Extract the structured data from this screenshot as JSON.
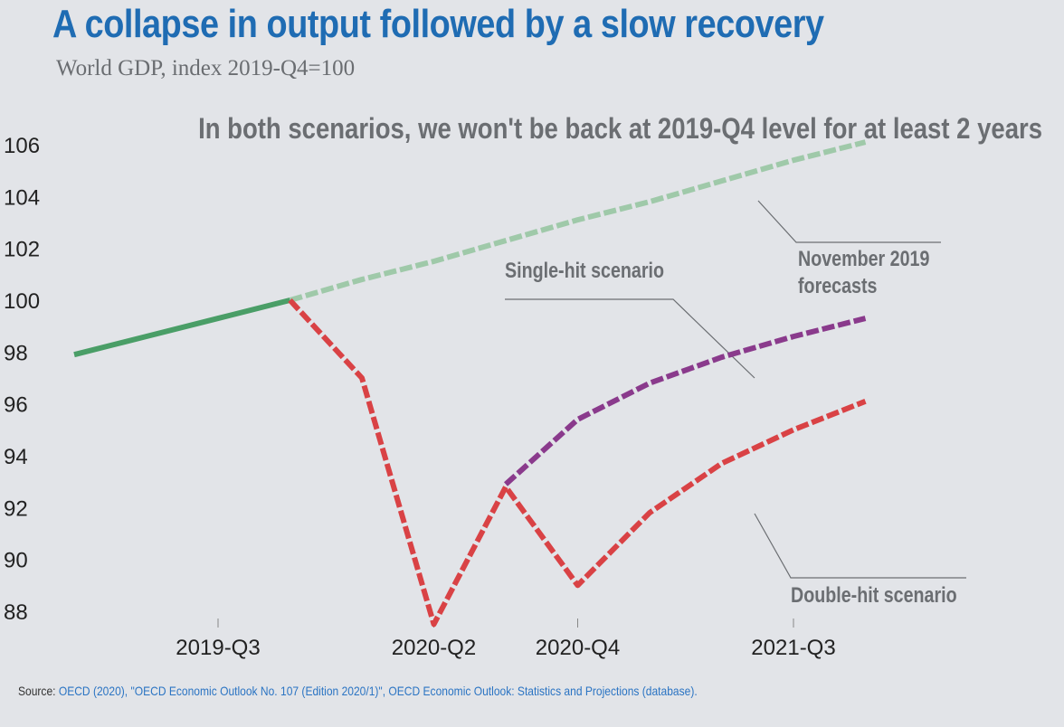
{
  "header": {
    "title": "A collapse in output followed by a slow recovery",
    "subtitle": "World GDP, index 2019-Q4=100"
  },
  "footer": {
    "source_label": "Source:",
    "source_text": "OECD (2020), \"OECD Economic Outlook No. 107 (Edition 2020/1)\", OECD Economic Outlook: Statistics and Projections (database)."
  },
  "colors": {
    "background": "#e2e4e8",
    "title": "#1f6cb3",
    "historical": "#4a9e67",
    "forecast": "#9fc9a9",
    "double_hit": "#d94245",
    "single_hit": "#8a3a8c",
    "annotation": "#6b6e72",
    "link": "#2b74c3"
  },
  "chart_data": {
    "type": "line",
    "title": "",
    "headline": "In both scenarios, we won't be back at 2019-Q4 level for at least 2 years",
    "xlabel": "",
    "ylabel": "",
    "x": [
      "2019-Q1",
      "2019-Q2",
      "2019-Q3",
      "2019-Q4",
      "2020-Q1",
      "2020-Q2",
      "2020-Q3",
      "2020-Q4",
      "2021-Q1",
      "2021-Q2",
      "2021-Q3",
      "2021-Q4"
    ],
    "xticks": [
      "2019-Q3",
      "2020-Q2",
      "2020-Q4",
      "2021-Q3"
    ],
    "ylim": [
      87.5,
      106.3
    ],
    "yticks": [
      88,
      90,
      92,
      94,
      96,
      98,
      100,
      102,
      104,
      106
    ],
    "grid": false,
    "series": [
      {
        "key": "historical",
        "x": [
          "2019-Q1",
          "2019-Q2",
          "2019-Q3",
          "2019-Q4"
        ],
        "values": [
          97.9,
          98.6,
          99.3,
          100.0
        ],
        "style": "solid"
      },
      {
        "key": "forecast",
        "name": "November 2019 forecasts",
        "x": [
          "2019-Q4",
          "2020-Q1",
          "2020-Q2",
          "2020-Q3",
          "2020-Q4",
          "2021-Q1",
          "2021-Q2",
          "2021-Q3",
          "2021-Q4"
        ],
        "values": [
          100.0,
          100.8,
          101.5,
          102.3,
          103.1,
          103.8,
          104.6,
          105.4,
          106.1
        ],
        "style": "dashed"
      },
      {
        "key": "double_hit",
        "name": "Double-hit scenario",
        "x": [
          "2019-Q4",
          "2020-Q1",
          "2020-Q2",
          "2020-Q3",
          "2020-Q4",
          "2021-Q1",
          "2021-Q2",
          "2021-Q3",
          "2021-Q4"
        ],
        "values": [
          100.0,
          97.0,
          87.5,
          92.8,
          89.0,
          91.8,
          93.7,
          95.0,
          96.1
        ],
        "style": "dashed"
      },
      {
        "key": "single_hit",
        "name": "Single-hit scenario",
        "x": [
          "2020-Q3",
          "2020-Q4",
          "2021-Q1",
          "2021-Q2",
          "2021-Q3",
          "2021-Q4"
        ],
        "values": [
          92.9,
          95.4,
          96.8,
          97.8,
          98.6,
          99.3
        ],
        "style": "dashed"
      }
    ],
    "annotations": [
      {
        "series": "forecast",
        "text_lines": [
          "November 2019",
          "forecasts"
        ]
      },
      {
        "series": "single_hit",
        "text_lines": [
          "Single-hit scenario"
        ]
      },
      {
        "series": "double_hit",
        "text_lines": [
          "Double-hit scenario"
        ]
      }
    ]
  }
}
